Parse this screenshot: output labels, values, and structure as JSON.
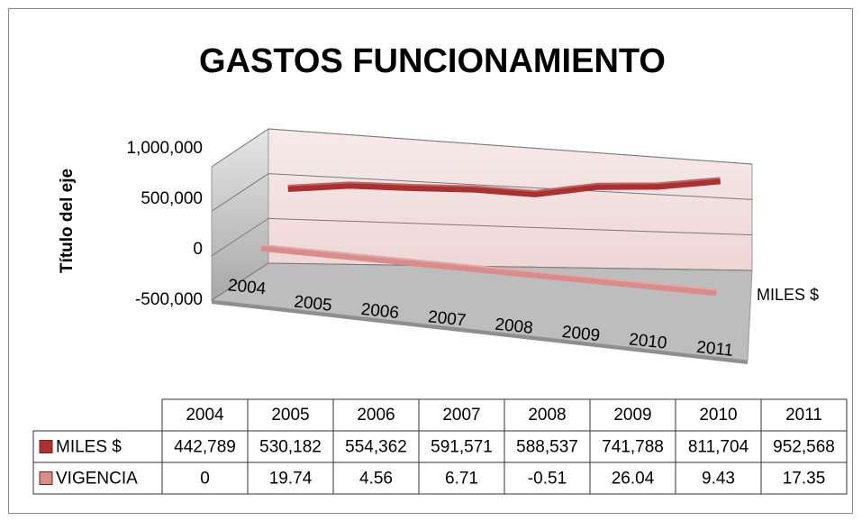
{
  "chart_data": {
    "type": "line3d",
    "title": "GASTOS FUNCIONAMIENTO",
    "y_label": "Título del eje",
    "depth_label": "MILES $",
    "categories": [
      "2004",
      "2005",
      "2006",
      "2007",
      "2008",
      "2009",
      "2010",
      "2011"
    ],
    "ylim": [
      -500000,
      1000000
    ],
    "yticks": [
      {
        "value": -500000,
        "label": "-500,000"
      },
      0,
      {
        "value": 500000,
        "label": "500,000"
      },
      {
        "value": 1000000,
        "label": "1,000,000"
      }
    ],
    "grid": true,
    "series": [
      {
        "name": "MILES $",
        "color": "#a83232",
        "values": [
          442789,
          530182,
          554362,
          591571,
          588537,
          741788,
          811704,
          952568
        ],
        "value_labels": [
          "442,789",
          "530,182",
          "554,362",
          "591,571",
          "588,537",
          "741,788",
          "811,704",
          "952,568"
        ]
      },
      {
        "name": "VIGENCIA",
        "color": "#d98c8c",
        "values": [
          0,
          19.74,
          4.56,
          6.71,
          -0.51,
          26.04,
          9.43,
          17.35
        ]
      }
    ]
  }
}
